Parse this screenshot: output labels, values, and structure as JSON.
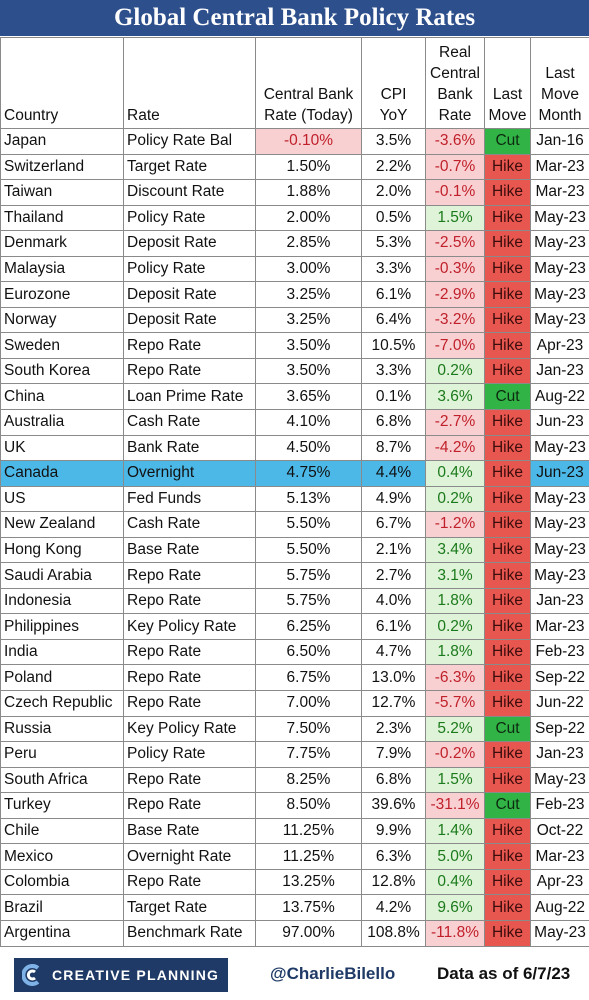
{
  "title": "Global Central Bank Policy Rates",
  "footer": {
    "brand": "CREATIVE PLANNING",
    "handle": "@CharlieBilello",
    "as_of": "Data as of 6/7/23"
  },
  "colors": {
    "title_bg": "#2d4f8c",
    "hike": "#e8574f",
    "cut": "#31b346",
    "real_positive_bg": "#dff3d8",
    "real_negative_bg": "#f8d0d2",
    "highlight_row": "#4cb8e8"
  },
  "chart_data": {
    "type": "table",
    "title": "Global Central Bank Policy Rates",
    "columns": [
      "Country",
      "Rate",
      "Central Bank Rate (Today)",
      "CPI YoY",
      "Real Central Bank Rate",
      "Last Move",
      "Last Move Month"
    ],
    "highlight_row": "Canada",
    "rows": [
      [
        "Japan",
        "Policy Rate Bal",
        "-0.10%",
        "3.5%",
        "-3.6%",
        "Cut",
        "Jan-16"
      ],
      [
        "Switzerland",
        "Target Rate",
        "1.50%",
        "2.2%",
        "-0.7%",
        "Hike",
        "Mar-23"
      ],
      [
        "Taiwan",
        "Discount Rate",
        "1.88%",
        "2.0%",
        "-0.1%",
        "Hike",
        "Mar-23"
      ],
      [
        "Thailand",
        "Policy Rate",
        "2.00%",
        "0.5%",
        "1.5%",
        "Hike",
        "May-23"
      ],
      [
        "Denmark",
        "Deposit Rate",
        "2.85%",
        "5.3%",
        "-2.5%",
        "Hike",
        "May-23"
      ],
      [
        "Malaysia",
        "Policy Rate",
        "3.00%",
        "3.3%",
        "-0.3%",
        "Hike",
        "May-23"
      ],
      [
        "Eurozone",
        "Deposit Rate",
        "3.25%",
        "6.1%",
        "-2.9%",
        "Hike",
        "May-23"
      ],
      [
        "Norway",
        "Deposit Rate",
        "3.25%",
        "6.4%",
        "-3.2%",
        "Hike",
        "May-23"
      ],
      [
        "Sweden",
        "Repo Rate",
        "3.50%",
        "10.5%",
        "-7.0%",
        "Hike",
        "Apr-23"
      ],
      [
        "South Korea",
        "Repo Rate",
        "3.50%",
        "3.3%",
        "0.2%",
        "Hike",
        "Jan-23"
      ],
      [
        "China",
        "Loan Prime Rate",
        "3.65%",
        "0.1%",
        "3.6%",
        "Cut",
        "Aug-22"
      ],
      [
        "Australia",
        "Cash Rate",
        "4.10%",
        "6.8%",
        "-2.7%",
        "Hike",
        "Jun-23"
      ],
      [
        "UK",
        "Bank Rate",
        "4.50%",
        "8.7%",
        "-4.2%",
        "Hike",
        "May-23"
      ],
      [
        "Canada",
        "Overnight",
        "4.75%",
        "4.4%",
        "0.4%",
        "Hike",
        "Jun-23"
      ],
      [
        "US",
        "Fed Funds",
        "5.13%",
        "4.9%",
        "0.2%",
        "Hike",
        "May-23"
      ],
      [
        "New Zealand",
        "Cash Rate",
        "5.50%",
        "6.7%",
        "-1.2%",
        "Hike",
        "May-23"
      ],
      [
        "Hong Kong",
        "Base Rate",
        "5.50%",
        "2.1%",
        "3.4%",
        "Hike",
        "May-23"
      ],
      [
        "Saudi Arabia",
        "Repo Rate",
        "5.75%",
        "2.7%",
        "3.1%",
        "Hike",
        "May-23"
      ],
      [
        "Indonesia",
        "Repo Rate",
        "5.75%",
        "4.0%",
        "1.8%",
        "Hike",
        "Jan-23"
      ],
      [
        "Philippines",
        "Key Policy Rate",
        "6.25%",
        "6.1%",
        "0.2%",
        "Hike",
        "Mar-23"
      ],
      [
        "India",
        "Repo Rate",
        "6.50%",
        "4.7%",
        "1.8%",
        "Hike",
        "Feb-23"
      ],
      [
        "Poland",
        "Repo Rate",
        "6.75%",
        "13.0%",
        "-6.3%",
        "Hike",
        "Sep-22"
      ],
      [
        "Czech Republic",
        "Repo Rate",
        "7.00%",
        "12.7%",
        "-5.7%",
        "Hike",
        "Jun-22"
      ],
      [
        "Russia",
        "Key Policy Rate",
        "7.50%",
        "2.3%",
        "5.2%",
        "Cut",
        "Sep-22"
      ],
      [
        "Peru",
        "Policy Rate",
        "7.75%",
        "7.9%",
        "-0.2%",
        "Hike",
        "Jan-23"
      ],
      [
        "South Africa",
        "Repo Rate",
        "8.25%",
        "6.8%",
        "1.5%",
        "Hike",
        "May-23"
      ],
      [
        "Turkey",
        "Repo Rate",
        "8.50%",
        "39.6%",
        "-31.1%",
        "Cut",
        "Feb-23"
      ],
      [
        "Chile",
        "Base Rate",
        "11.25%",
        "9.9%",
        "1.4%",
        "Hike",
        "Oct-22"
      ],
      [
        "Mexico",
        "Overnight Rate",
        "11.25%",
        "6.3%",
        "5.0%",
        "Hike",
        "Mar-23"
      ],
      [
        "Colombia",
        "Repo Rate",
        "13.25%",
        "12.8%",
        "0.4%",
        "Hike",
        "Apr-23"
      ],
      [
        "Brazil",
        "Target Rate",
        "13.75%",
        "4.2%",
        "9.6%",
        "Hike",
        "Aug-22"
      ],
      [
        "Argentina",
        "Benchmark Rate",
        "97.00%",
        "108.8%",
        "-11.8%",
        "Hike",
        "May-23"
      ]
    ]
  }
}
